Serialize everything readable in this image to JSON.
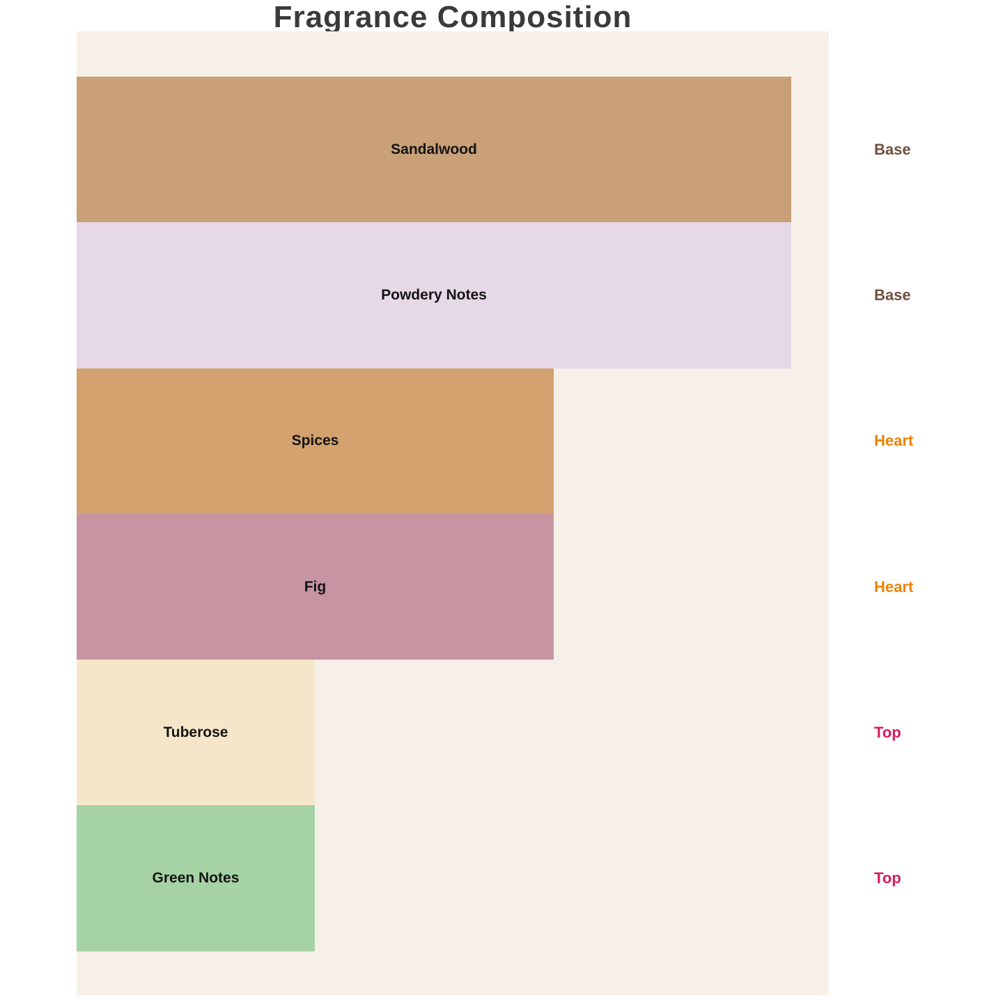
{
  "title": "Fragrance Composition",
  "colors": {
    "page_background": "#ffffff",
    "plot_background": "#f7f0e8",
    "title_text": "#3a3a3a",
    "bar_label_text": "#141414"
  },
  "chart_data": {
    "type": "bar",
    "orientation": "horizontal",
    "title": "Fragrance Composition",
    "categories": [
      "Sandalwood",
      "Powdery Notes",
      "Spices",
      "Fig",
      "Tuberose",
      "Green Notes"
    ],
    "values": [
      3,
      3,
      2,
      2,
      1,
      1
    ],
    "value_fractions": [
      1.0,
      1.0,
      0.6676,
      0.6676,
      0.3333,
      0.3333
    ],
    "stages": [
      "Base",
      "Base",
      "Heart",
      "Heart",
      "Top",
      "Top"
    ],
    "bar_colors": [
      "#c9a078",
      "#e6d8e6",
      "#d3a26e",
      "#c794a2",
      "#f6e6c9",
      "#a5d3a5"
    ],
    "stage_colors": [
      "#71503f",
      "#71503f",
      "#ef8200",
      "#ef8200",
      "#d81b60",
      "#d81b60"
    ],
    "xlabel": "",
    "ylabel": "",
    "xlim": [
      0,
      3.16
    ],
    "grid": false,
    "legend": "none",
    "notes": "Funnel-style horizontal bar chart; bars left-aligned, labels centered inside bars, stage labels right of plot area"
  }
}
